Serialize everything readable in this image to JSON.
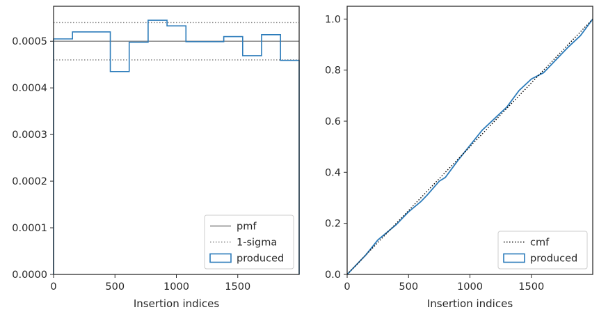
{
  "chart_data": [
    {
      "type": "histogram",
      "xlabel": "Insertion indices",
      "ylabel": "",
      "xlim": [
        0,
        2000
      ],
      "ylim": [
        0,
        0.000575
      ],
      "xticks": [
        0,
        500,
        1000,
        1500
      ],
      "yticks": [
        0.0,
        0.0001,
        0.0002,
        0.0003,
        0.0004,
        0.0005
      ],
      "ytick_labels": [
        "0.0000",
        "0.0001",
        "0.0002",
        "0.0003",
        "0.0004",
        "0.0005"
      ],
      "xtick_labels": [
        "0",
        "500",
        "1000",
        "1500"
      ],
      "legend_position": "lower-right",
      "pmf": {
        "name": "pmf",
        "value": 0.0005,
        "color": "#808080"
      },
      "sigma": {
        "name": "1-sigma",
        "values": [
          0.00046,
          0.00054
        ],
        "color": "#808080"
      },
      "produced": {
        "name": "produced",
        "color": "#2b7bba",
        "bin_edges": [
          0,
          154,
          462,
          616,
          770,
          924,
          1078,
          1386,
          1540,
          1694,
          1848,
          2000
        ],
        "values": [
          0.000505,
          0.00052,
          0.000435,
          0.000498,
          0.000545,
          0.000533,
          0.000499,
          0.00051,
          0.000469,
          0.000514,
          0.000459
        ]
      }
    },
    {
      "type": "line",
      "xlabel": "Insertion indices",
      "ylabel": "",
      "xlim": [
        0,
        2000
      ],
      "ylim": [
        0,
        1.05
      ],
      "xticks": [
        0,
        500,
        1000,
        1500
      ],
      "xtick_labels": [
        "0",
        "500",
        "1000",
        "1500"
      ],
      "yticks": [
        0.0,
        0.2,
        0.4,
        0.6,
        0.8,
        1.0
      ],
      "ytick_labels": [
        "0.0",
        "0.2",
        "0.4",
        "0.6",
        "0.8",
        "1.0"
      ],
      "legend_position": "lower-right",
      "series": [
        {
          "name": "cmf",
          "style": "dotted",
          "color": "#000000",
          "x": [
            0,
            2000
          ],
          "y": [
            0,
            1.0
          ]
        },
        {
          "name": "produced",
          "style": "solid",
          "color": "#2b7bba",
          "x": [
            0,
            100,
            150,
            250,
            300,
            400,
            500,
            600,
            650,
            750,
            800,
            900,
            1000,
            1100,
            1200,
            1300,
            1400,
            1500,
            1600,
            1700,
            1800,
            1900,
            2000
          ],
          "y": [
            0,
            0.05,
            0.075,
            0.135,
            0.155,
            0.195,
            0.245,
            0.285,
            0.31,
            0.365,
            0.38,
            0.445,
            0.505,
            0.565,
            0.61,
            0.655,
            0.72,
            0.765,
            0.79,
            0.84,
            0.89,
            0.935,
            1.0
          ]
        }
      ]
    }
  ]
}
